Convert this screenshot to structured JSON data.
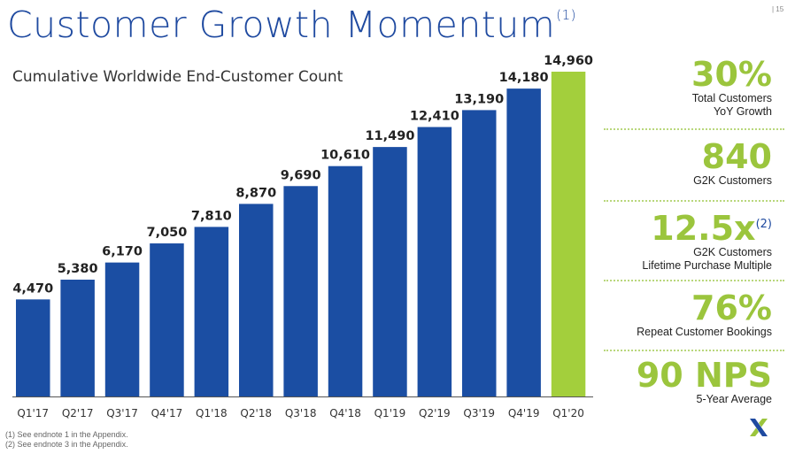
{
  "header": {
    "title": "Customer Growth Momentum",
    "title_note": "(1)",
    "page_number": "| 15"
  },
  "chart_data": {
    "type": "bar",
    "title": "Cumulative Worldwide End-Customer Count",
    "xlabel": "",
    "ylabel": "",
    "categories": [
      "Q1'17",
      "Q2'17",
      "Q3'17",
      "Q4'17",
      "Q1'18",
      "Q2'18",
      "Q3'18",
      "Q4'18",
      "Q1'19",
      "Q2'19",
      "Q3'19",
      "Q4'19",
      "Q1'20"
    ],
    "values": [
      4470,
      5380,
      6170,
      7050,
      7810,
      8870,
      9690,
      10610,
      11490,
      12410,
      13190,
      14180,
      14960
    ],
    "value_labels": [
      "4,470",
      "5,380",
      "6,170",
      "7,050",
      "7,810",
      "8,870",
      "9,690",
      "10,610",
      "11,490",
      "12,410",
      "13,190",
      "14,180",
      "14,960"
    ],
    "highlight_index": 12,
    "ylim": [
      0,
      15000
    ],
    "grid": false,
    "colors": {
      "bar": "#1b4ea3",
      "highlight": "#a3cf3c",
      "axis": "#555555"
    }
  },
  "kpis": [
    {
      "value": "30%",
      "note": "",
      "label_lines": [
        "Total Customers",
        "YoY Growth"
      ]
    },
    {
      "value": "840",
      "note": "",
      "label_lines": [
        "G2K Customers"
      ]
    },
    {
      "value": "12.5x",
      "note": "(2)",
      "label_lines": [
        "G2K Customers",
        "Lifetime Purchase Multiple"
      ]
    },
    {
      "value": "76%",
      "note": "",
      "label_lines": [
        "Repeat Customer Bookings"
      ]
    },
    {
      "value": "90 NPS",
      "note": "",
      "label_lines": [
        "5-Year Average"
      ]
    }
  ],
  "footnotes": [
    "(1)  See endnote 1 in the Appendix.",
    "(2) See endnote 3 in the Appendix."
  ],
  "logo": {
    "icon": "nutanix-x-logo",
    "colors": [
      "#1f4aa0",
      "#9bc53d"
    ]
  },
  "theme": {
    "title_color": "#1f4aa0",
    "accent_green": "#9bc53d"
  }
}
